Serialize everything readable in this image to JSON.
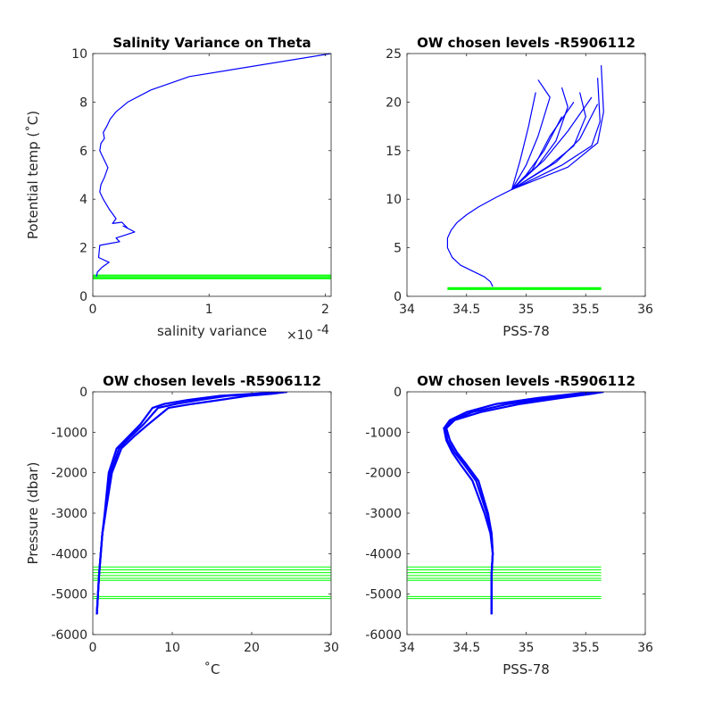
{
  "colors": {
    "profile": "#0000ff",
    "chosen_levels": "#00ff00",
    "axes": "#262626"
  },
  "chart_data": [
    {
      "type": "line",
      "title": "Salinity Variance on Theta",
      "xlabel": "salinity variance",
      "ylabel": "Potential temp (˚C)",
      "x_exponent_label": "×10",
      "x_exponent_power": "-4",
      "xlim": [
        0,
        2.05
      ],
      "ylim": [
        0,
        10
      ],
      "xticks": [
        "0",
        "1",
        "2"
      ],
      "xtick_values": [
        0,
        1,
        2
      ],
      "yticks": [
        "0",
        "2",
        "4",
        "6",
        "8",
        "10"
      ],
      "ytick_values": [
        0,
        2,
        4,
        6,
        8,
        10
      ],
      "series": [
        {
          "role": "profile",
          "x": [
            2.05,
            0.83,
            0.5,
            0.3,
            0.2,
            0.15,
            0.12,
            0.09,
            0.1,
            0.07,
            0.06,
            0.09,
            0.13,
            0.1,
            0.07,
            0.06,
            0.09,
            0.14,
            0.2,
            0.17,
            0.25,
            0.3,
            0.26,
            0.36,
            0.2,
            0.23,
            0.06,
            0.05,
            0.14,
            0.08,
            0.04,
            0.03
          ],
          "y": [
            10,
            9.05,
            8.5,
            8.0,
            7.6,
            7.3,
            7.0,
            6.75,
            6.5,
            6.3,
            6.0,
            5.7,
            5.3,
            4.9,
            4.6,
            4.3,
            4.0,
            3.6,
            3.2,
            3.0,
            3.05,
            2.8,
            2.9,
            2.65,
            2.4,
            2.25,
            2.1,
            1.6,
            1.4,
            1.2,
            1.0,
            0.8
          ]
        }
      ],
      "hlines": {
        "y": [
          0.72,
          0.76,
          0.8,
          0.84,
          0.88
        ],
        "xrange": [
          0,
          2.05
        ]
      }
    },
    {
      "type": "line",
      "title": "OW chosen levels -R5906112",
      "xlabel": "PSS-78",
      "ylabel": "",
      "xlim": [
        34,
        36
      ],
      "ylim": [
        0,
        25
      ],
      "xticks": [
        "34",
        "34.5",
        "35",
        "35.5",
        "36"
      ],
      "xtick_values": [
        34,
        34.5,
        35,
        35.5,
        36
      ],
      "yticks": [
        "0",
        "5",
        "10",
        "15",
        "20",
        "25"
      ],
      "ytick_values": [
        0,
        5,
        10,
        15,
        20,
        25
      ],
      "series": [
        {
          "role": "deep-core",
          "x": [
            34.72,
            34.7,
            34.65,
            34.55,
            34.45,
            34.38,
            34.34,
            34.34,
            34.37,
            34.42,
            34.5,
            34.6,
            34.75,
            34.88
          ],
          "y": [
            1.0,
            1.5,
            2.0,
            2.6,
            3.2,
            4.0,
            5.0,
            6.0,
            6.8,
            7.6,
            8.4,
            9.2,
            10.2,
            11.0
          ]
        },
        {
          "role": "spread",
          "x": [
            34.88,
            35.0,
            35.1,
            35.2,
            35.1
          ],
          "y": [
            11.0,
            13.5,
            16.5,
            20.5,
            22.3
          ]
        },
        {
          "role": "spread",
          "x": [
            34.88,
            35.1,
            35.25,
            35.35,
            35.3
          ],
          "y": [
            11.0,
            13.5,
            16.0,
            19.5,
            21.5
          ]
        },
        {
          "role": "spread",
          "x": [
            34.88,
            35.2,
            35.4,
            35.5,
            35.45
          ],
          "y": [
            11.0,
            13.5,
            15.5,
            18.5,
            21.0
          ]
        },
        {
          "role": "spread",
          "x": [
            34.88,
            35.3,
            35.55,
            35.62,
            35.6
          ],
          "y": [
            11.0,
            13.5,
            15.5,
            18.0,
            22.5
          ]
        },
        {
          "role": "spread",
          "x": [
            34.88,
            35.35,
            35.6,
            35.65,
            35.63
          ],
          "y": [
            11.0,
            13.3,
            15.8,
            19.0,
            23.8
          ]
        },
        {
          "role": "spread",
          "x": [
            34.88,
            35.0,
            35.15,
            35.3
          ],
          "y": [
            11.0,
            12.5,
            15.0,
            18.5
          ]
        },
        {
          "role": "spread",
          "x": [
            34.88,
            35.05,
            35.2,
            35.4
          ],
          "y": [
            11.0,
            13.0,
            16.5,
            20.0
          ]
        },
        {
          "role": "spread",
          "x": [
            34.88,
            34.95,
            35.02,
            35.08
          ],
          "y": [
            11.0,
            14.0,
            17.5,
            21.0
          ]
        },
        {
          "role": "spread",
          "x": [
            34.88,
            35.15,
            35.35,
            35.55
          ],
          "y": [
            11.0,
            14.0,
            17.0,
            20.5
          ]
        },
        {
          "role": "spread",
          "x": [
            34.88,
            35.25,
            35.45,
            35.6
          ],
          "y": [
            11.0,
            13.8,
            16.2,
            19.8
          ]
        }
      ],
      "hlines": {
        "y": [
          0.7,
          0.75,
          0.8,
          0.85,
          0.9
        ],
        "xrange": [
          34.34,
          35.63
        ]
      }
    },
    {
      "type": "line",
      "title": "OW chosen levels -R5906112",
      "xlabel": "˚C",
      "ylabel": "Pressure (dbar)",
      "xlim": [
        0,
        30
      ],
      "ylim": [
        -6000,
        0
      ],
      "xticks": [
        "0",
        "10",
        "20",
        "30"
      ],
      "xtick_values": [
        0,
        10,
        20,
        30
      ],
      "yticks": [
        "-6000",
        "-5000",
        "-4000",
        "-3000",
        "-2000",
        "-1000",
        "0"
      ],
      "ytick_values": [
        -6000,
        -5000,
        -4000,
        -3000,
        -2000,
        -1000,
        0
      ],
      "series": [
        {
          "role": "profile",
          "x": [
            0.5,
            0.8,
            1.0,
            1.2,
            1.5,
            2.0,
            3.0,
            4.5,
            6.0,
            7.5,
            9.0,
            12.0,
            16.0,
            20.0,
            24.0
          ],
          "y": [
            -5500,
            -4500,
            -4000,
            -3500,
            -3000,
            -2000,
            -1400,
            -1100,
            -800,
            -400,
            -300,
            -200,
            -100,
            -50,
            0
          ]
        },
        {
          "role": "profile",
          "x": [
            0.5,
            0.8,
            1.0,
            1.2,
            1.6,
            2.2,
            3.3,
            4.8,
            6.4,
            8.2,
            10.5,
            13.5,
            17.0,
            20.5,
            23.5
          ],
          "y": [
            -5500,
            -4500,
            -4000,
            -3500,
            -3000,
            -2000,
            -1400,
            -1100,
            -800,
            -400,
            -300,
            -200,
            -100,
            -50,
            0
          ]
        },
        {
          "role": "profile",
          "x": [
            0.5,
            0.8,
            1.0,
            1.2,
            1.6,
            2.4,
            3.6,
            5.2,
            7.0,
            9.5,
            12.5,
            16.0,
            19.5,
            22.5,
            24.5
          ],
          "y": [
            -5500,
            -4500,
            -4000,
            -3500,
            -3000,
            -2000,
            -1400,
            -1100,
            -800,
            -400,
            -300,
            -200,
            -100,
            -50,
            0
          ]
        }
      ],
      "hlines": {
        "y": [
          -4330,
          -4400,
          -4470,
          -4540,
          -4610,
          -4660,
          -5060,
          -5110
        ],
        "xrange": [
          0,
          30
        ]
      }
    },
    {
      "type": "line",
      "title": "OW chosen levels -R5906112",
      "xlabel": "PSS-78",
      "ylabel": "",
      "xlim": [
        34,
        36
      ],
      "ylim": [
        -6000,
        0
      ],
      "xticks": [
        "34",
        "34.5",
        "35",
        "35.5",
        "36"
      ],
      "xtick_values": [
        34,
        34.5,
        35,
        35.5,
        36
      ],
      "yticks": [
        "-6000",
        "-5000",
        "-4000",
        "-3000",
        "-2000",
        "-1000",
        "0"
      ],
      "ytick_values": [
        -6000,
        -5000,
        -4000,
        -3000,
        -2000,
        -1000,
        0
      ],
      "series": [
        {
          "role": "profile",
          "x": [
            34.71,
            34.71,
            34.72,
            34.7,
            34.65,
            34.55,
            34.45,
            34.38,
            34.33,
            34.31,
            34.36,
            34.5,
            34.75,
            35.1,
            35.4,
            35.6
          ],
          "y": [
            -5500,
            -4500,
            -4000,
            -3500,
            -3000,
            -2200,
            -1800,
            -1500,
            -1200,
            -900,
            -700,
            -500,
            -300,
            -150,
            -50,
            0
          ]
        },
        {
          "role": "profile",
          "x": [
            34.71,
            34.71,
            34.72,
            34.71,
            34.67,
            34.58,
            34.48,
            34.4,
            34.34,
            34.32,
            34.38,
            34.55,
            34.85,
            35.2,
            35.5,
            35.65
          ],
          "y": [
            -5500,
            -4500,
            -4000,
            -3500,
            -3000,
            -2200,
            -1800,
            -1500,
            -1200,
            -900,
            -700,
            -500,
            -300,
            -150,
            -50,
            0
          ]
        },
        {
          "role": "profile",
          "x": [
            34.71,
            34.71,
            34.72,
            34.71,
            34.68,
            34.6,
            34.5,
            34.42,
            34.36,
            34.33,
            34.4,
            34.62,
            34.95,
            35.3,
            35.55,
            35.65
          ],
          "y": [
            -5500,
            -4500,
            -4000,
            -3500,
            -3000,
            -2200,
            -1800,
            -1500,
            -1200,
            -900,
            -700,
            -500,
            -300,
            -150,
            -50,
            0
          ]
        }
      ],
      "hlines": {
        "y": [
          -4330,
          -4400,
          -4470,
          -4540,
          -4610,
          -4660,
          -5060,
          -5110
        ],
        "xrange": [
          34,
          35.63
        ]
      }
    }
  ]
}
